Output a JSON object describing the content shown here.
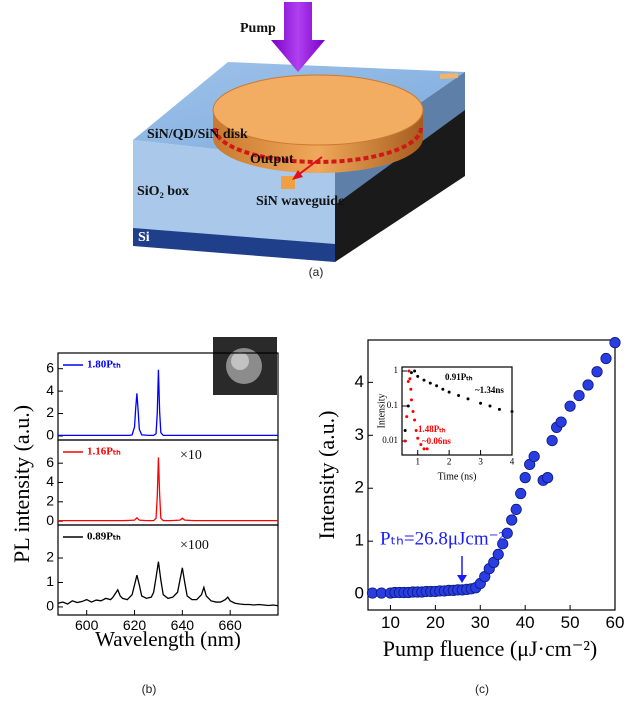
{
  "diagram": {
    "pump": "Pump",
    "disk": "SiN/QD/SiN disk",
    "output": "Output",
    "box": "SiO₂ box",
    "waveguide": "SiN waveguide",
    "substrate": "Si"
  },
  "captions": {
    "a": "(a)",
    "b": "(b)",
    "c": "(c)"
  },
  "chart_data": [
    {
      "type": "line",
      "x": [
        588,
        595,
        600,
        605,
        610,
        615,
        618,
        619,
        620,
        620.5,
        621,
        621.5,
        622,
        623,
        626,
        628,
        629,
        629.5,
        630,
        630.5,
        631,
        632,
        635,
        640,
        645,
        650,
        655,
        660,
        665,
        670,
        675,
        680
      ],
      "series": [
        {
          "name": "1.80Pₜₕ",
          "color": "#0000ff",
          "values": [
            0.05,
            0.05,
            0.05,
            0.05,
            0.05,
            0.05,
            0.05,
            0.1,
            0.8,
            2.5,
            3.8,
            2.3,
            0.6,
            0.1,
            0.05,
            0.05,
            0.2,
            2.0,
            5.9,
            2.2,
            0.3,
            0.05,
            0.05,
            0.05,
            0.05,
            0.05,
            0.05,
            0.05,
            0.05,
            0.05,
            0.05,
            0.05
          ]
        }
      ],
      "xlim": [
        588,
        680
      ],
      "ylim": [
        -0.36,
        7.4
      ],
      "yticks": [
        0,
        2,
        4,
        6
      ]
    },
    {
      "type": "line",
      "x": [
        588,
        595,
        600,
        605,
        610,
        615,
        620,
        621,
        622,
        625,
        628,
        629,
        629.5,
        630,
        630.5,
        631,
        632,
        635,
        639,
        640,
        641,
        645,
        650,
        655,
        660,
        665,
        670,
        675,
        680
      ],
      "series": [
        {
          "name": "1.16Pₜₕ",
          "color": "#ff0000",
          "values": [
            0.05,
            0.05,
            0.05,
            0.05,
            0.05,
            0.05,
            0.1,
            0.35,
            0.1,
            0.05,
            0.05,
            0.3,
            2.5,
            6.6,
            2.8,
            0.3,
            0.05,
            0.05,
            0.1,
            0.3,
            0.1,
            0.05,
            0.05,
            0.05,
            0.05,
            0.05,
            0.05,
            0.05,
            0.05
          ]
        }
      ],
      "annotations": [
        "×10"
      ],
      "xlim": [
        588,
        680
      ],
      "ylim": [
        -0.4,
        8.4
      ],
      "yticks": [
        0,
        2,
        4,
        6
      ]
    },
    {
      "type": "line",
      "x": [
        588,
        590,
        592,
        594,
        596,
        598,
        600,
        602,
        604,
        606,
        608,
        610,
        611,
        612,
        613,
        614,
        615,
        617,
        619,
        620,
        621,
        622,
        623,
        625,
        627,
        628,
        629,
        630,
        631,
        632,
        634,
        636,
        638,
        639,
        640,
        641,
        642,
        644,
        646,
        648,
        649,
        650,
        652,
        654,
        656,
        658,
        659,
        660,
        662,
        664,
        666,
        668,
        670,
        672,
        674,
        676,
        678,
        680
      ],
      "series": [
        {
          "name": "0.89Pₜₕ",
          "color": "#000000",
          "values": [
            0.15,
            0.2,
            0.12,
            0.25,
            0.18,
            0.22,
            0.3,
            0.2,
            0.28,
            0.25,
            0.35,
            0.3,
            0.4,
            0.55,
            0.7,
            0.45,
            0.35,
            0.3,
            0.5,
            0.9,
            1.3,
            0.9,
            0.45,
            0.35,
            0.4,
            0.6,
            1.2,
            1.85,
            1.1,
            0.5,
            0.35,
            0.4,
            0.6,
            1.1,
            1.6,
            1.0,
            0.45,
            0.3,
            0.3,
            0.5,
            0.8,
            0.45,
            0.25,
            0.2,
            0.2,
            0.3,
            0.4,
            0.25,
            0.15,
            0.12,
            0.1,
            0.1,
            0.08,
            0.1,
            0.08,
            0.06,
            0.08,
            0.05
          ]
        }
      ],
      "annotations": [
        "×100"
      ],
      "xlabel": "Wavelength (nm)",
      "ylabel": "PL intensity (a.u.)",
      "xlim": [
        588,
        680
      ],
      "xticks": [
        600,
        620,
        640,
        660
      ],
      "ylim": [
        -0.33,
        3.35
      ],
      "yticks": [
        0,
        1,
        2
      ]
    },
    {
      "type": "scatter",
      "x": [
        6,
        8,
        10,
        11,
        12,
        13,
        14,
        15,
        16,
        17,
        18,
        19,
        20,
        21,
        22,
        23,
        24,
        25,
        26,
        27,
        28,
        29,
        30,
        31,
        32,
        33,
        34,
        35,
        36,
        37,
        38,
        39,
        40,
        41,
        42,
        44,
        45,
        46,
        47,
        48,
        50,
        52,
        54,
        56,
        58,
        60
      ],
      "series": [
        {
          "color": "#2a3de0",
          "values": [
            0.02,
            0.02,
            0.02,
            0.03,
            0.03,
            0.03,
            0.03,
            0.04,
            0.04,
            0.04,
            0.05,
            0.05,
            0.05,
            0.06,
            0.06,
            0.07,
            0.07,
            0.08,
            0.08,
            0.09,
            0.1,
            0.12,
            0.2,
            0.33,
            0.48,
            0.6,
            0.75,
            0.95,
            1.15,
            1.4,
            1.6,
            1.9,
            2.2,
            2.45,
            2.6,
            2.15,
            2.2,
            2.9,
            3.15,
            3.25,
            3.55,
            3.75,
            3.95,
            4.2,
            4.45,
            4.75
          ]
        }
      ],
      "annotations": [
        "Pₜₕ=26.8μJcm⁻²"
      ],
      "xlabel": "Pump fluence (μJ·cm⁻²)",
      "ylabel": "Intensity (a.u.)",
      "xlim": [
        5,
        60
      ],
      "xticks": [
        10,
        20,
        30,
        40,
        50,
        60
      ],
      "ylim": [
        -0.3,
        4.8
      ],
      "yticks": [
        0,
        1,
        2,
        3,
        4
      ]
    },
    {
      "type": "scatter",
      "log_y": true,
      "series": [
        {
          "name": "0.91Pₜₕ",
          "color": "#000000",
          "x": [
            0.6,
            0.7,
            0.8,
            0.9,
            1.0,
            1.2,
            1.4,
            1.6,
            1.8,
            2.0,
            2.3,
            2.6,
            3.0,
            3.3,
            3.6,
            4.0
          ],
          "values": [
            0.02,
            0.1,
            0.9,
            1.0,
            0.7,
            0.55,
            0.45,
            0.38,
            0.3,
            0.25,
            0.2,
            0.16,
            0.12,
            0.1,
            0.08,
            0.07
          ]
        },
        {
          "name": "1.48Pₜₕ",
          "color": "#ff0000",
          "x": [
            0.6,
            0.65,
            0.7,
            0.72,
            0.75,
            0.78,
            0.8,
            0.85,
            0.9,
            0.95,
            1.0,
            1.1,
            1.2,
            1.3
          ],
          "values": [
            0.01,
            0.05,
            0.5,
            1.0,
            0.6,
            0.3,
            0.15,
            0.07,
            0.04,
            0.02,
            0.012,
            0.008,
            0.006,
            0.006
          ]
        }
      ],
      "annotations": [
        "~1.34ns",
        "~0.06ns"
      ],
      "xlabel": "Time (ns)",
      "ylabel": "Intensity",
      "xlim": [
        0.5,
        4.0
      ],
      "xticks": [
        1,
        2,
        3,
        4
      ],
      "ylim": [
        0.004,
        1.3
      ],
      "yticks": [
        0.01,
        0.1,
        1
      ]
    }
  ]
}
